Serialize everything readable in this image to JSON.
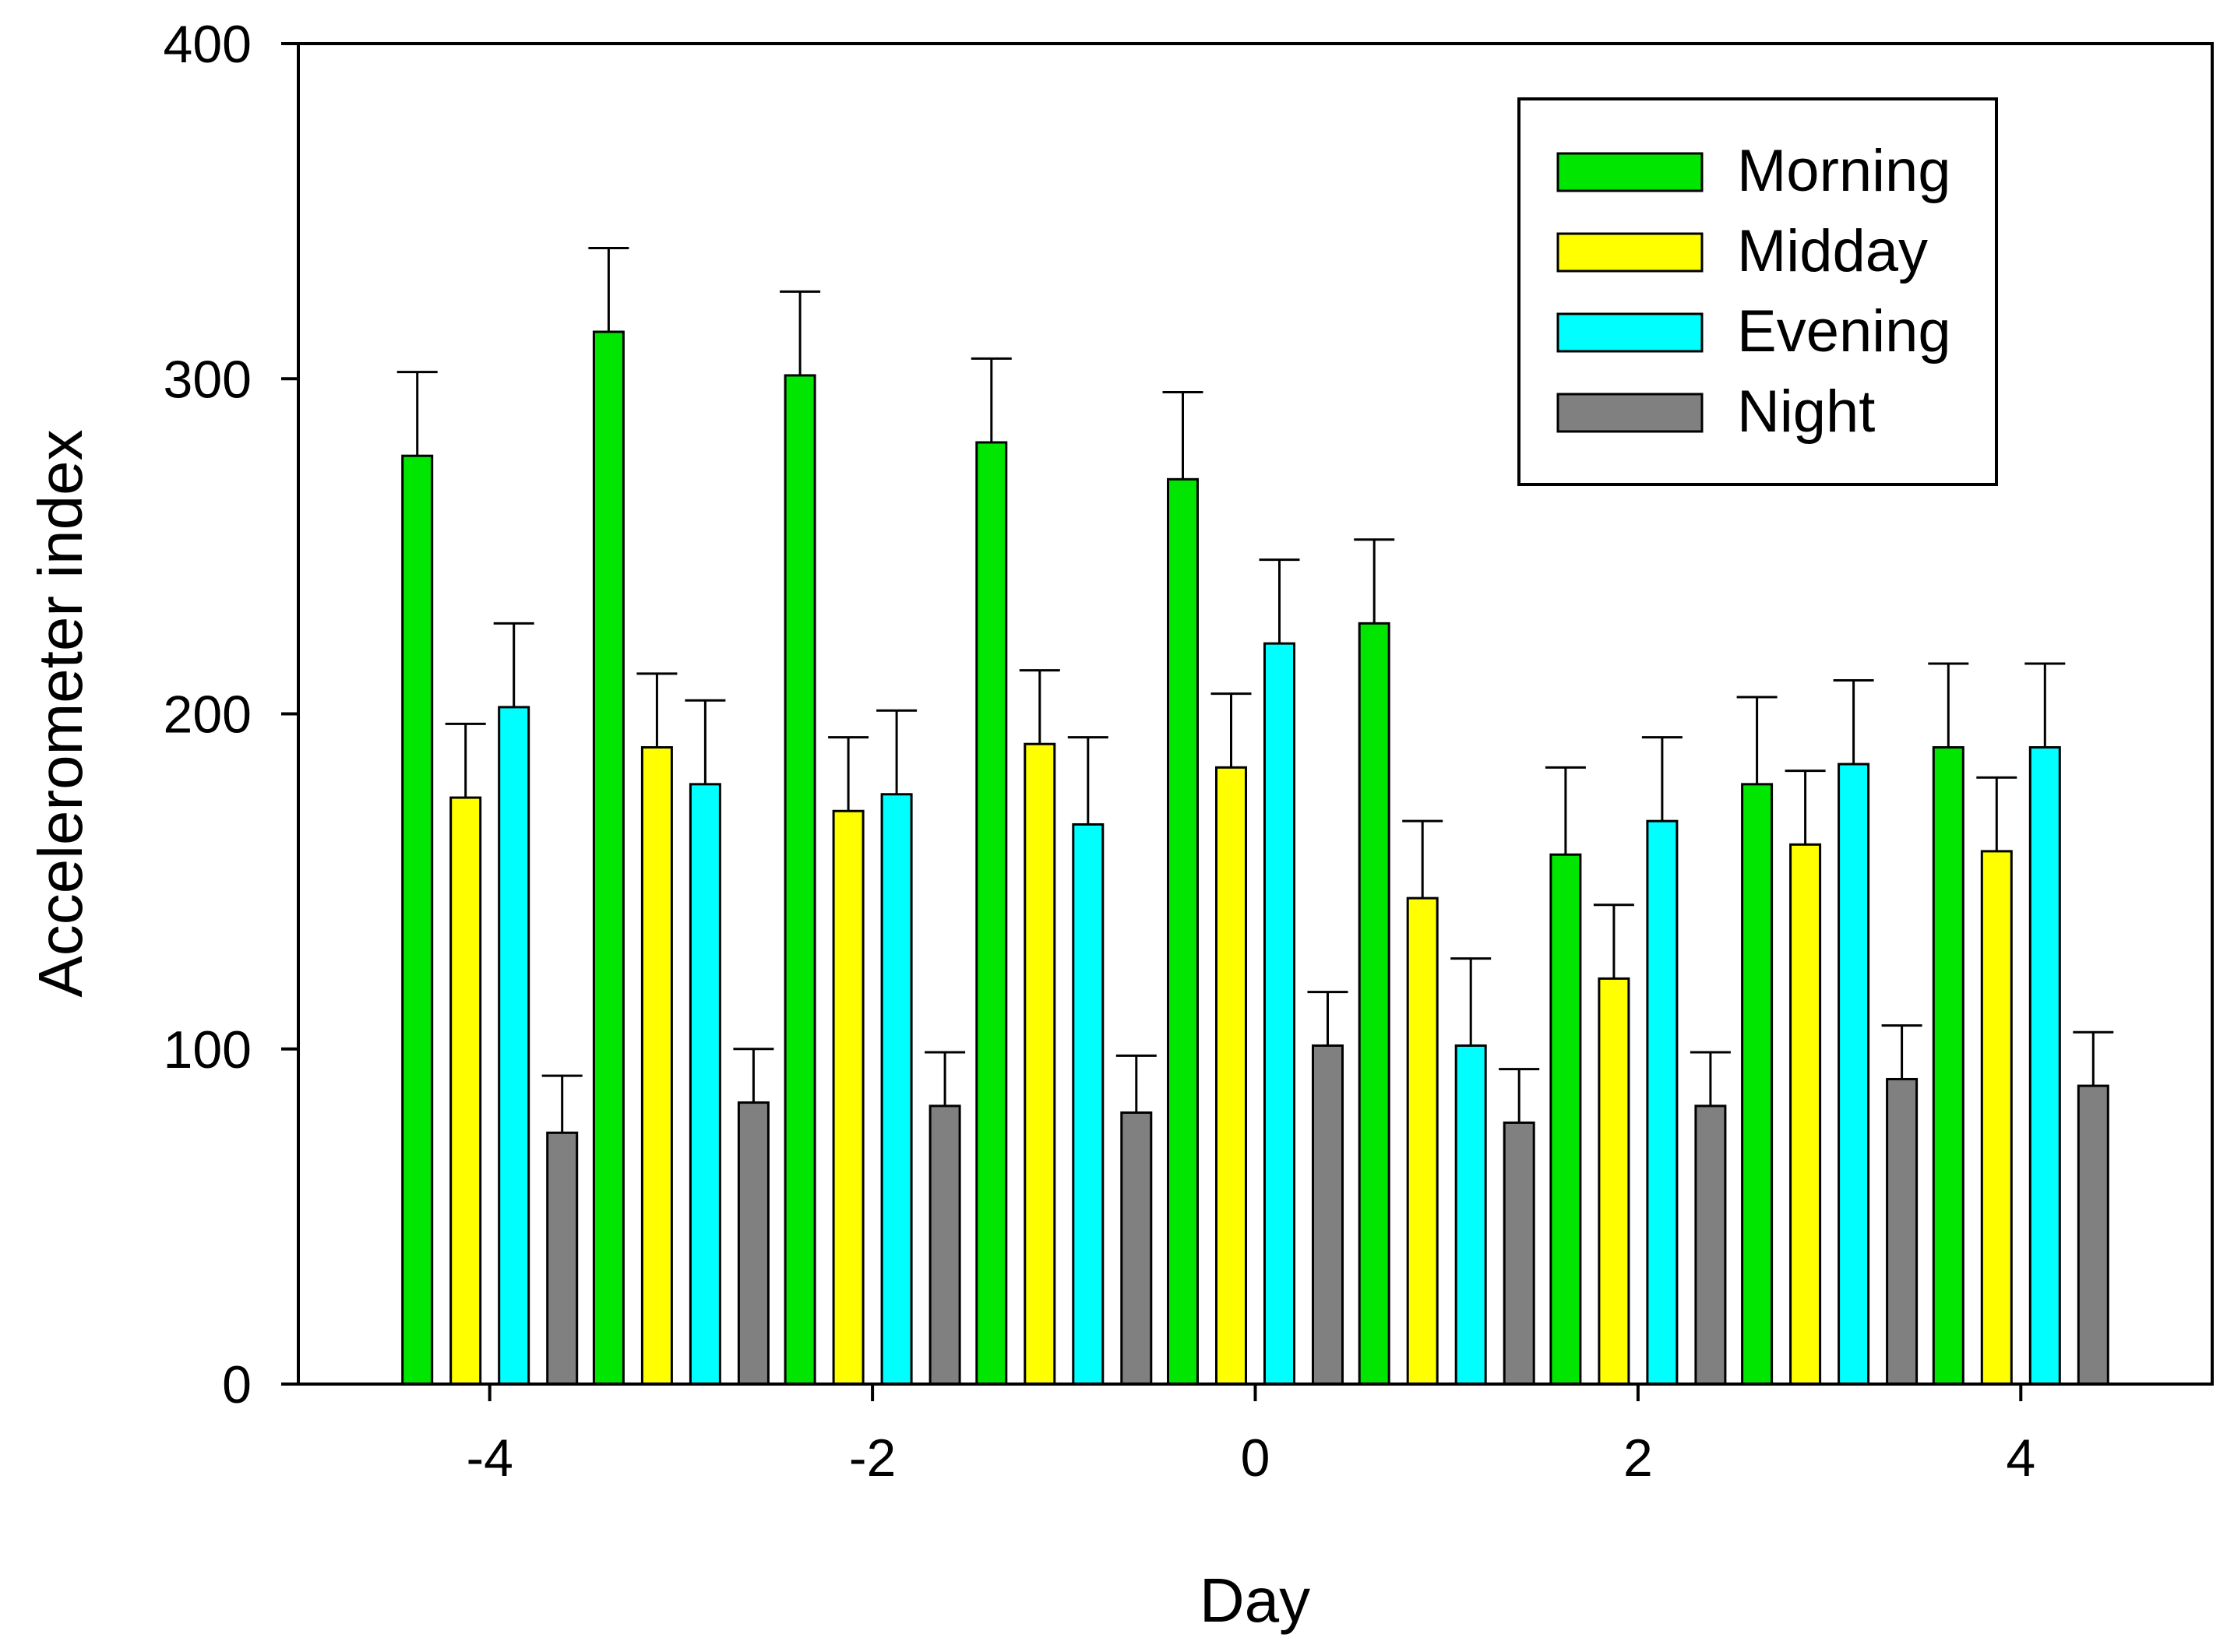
{
  "chart_data": {
    "type": "bar",
    "title": "",
    "xlabel": "Day",
    "ylabel": "Accelerometer index",
    "categories": [
      -4,
      -3,
      -2,
      -1,
      0,
      1,
      2,
      3,
      4
    ],
    "x_tick_labels": [
      "-4",
      "-2",
      "0",
      "2",
      "4"
    ],
    "y_tick_labels": [
      "0",
      "100",
      "200",
      "300",
      "400"
    ],
    "ylim": [
      0,
      400
    ],
    "xlim": [
      -5,
      5
    ],
    "y_ticks": [
      0,
      100,
      200,
      300,
      400
    ],
    "x_ticks": [
      -4,
      -2,
      0,
      2,
      4
    ],
    "grid": false,
    "legend_position": "top-right",
    "series": [
      {
        "name": "Morning",
        "color": "#00e600",
        "values": [
          277,
          314,
          301,
          281,
          270,
          227,
          158,
          179,
          190
        ],
        "errors": [
          25,
          25,
          25,
          25,
          26,
          25,
          26,
          26,
          25
        ]
      },
      {
        "name": "Midday",
        "color": "#ffff00",
        "values": [
          175,
          190,
          171,
          191,
          184,
          145,
          121,
          161,
          159
        ],
        "errors": [
          22,
          22,
          22,
          22,
          22,
          23,
          22,
          22,
          22
        ]
      },
      {
        "name": "Evening",
        "color": "#00ffff",
        "values": [
          202,
          179,
          176,
          167,
          221,
          101,
          168,
          185,
          190
        ],
        "errors": [
          25,
          25,
          25,
          26,
          25,
          26,
          25,
          25,
          25
        ]
      },
      {
        "name": "Night",
        "color": "#808080",
        "values": [
          75,
          84,
          83,
          81,
          101,
          78,
          83,
          91,
          89
        ],
        "errors": [
          17,
          16,
          16,
          17,
          16,
          16,
          16,
          16,
          16
        ]
      }
    ]
  }
}
